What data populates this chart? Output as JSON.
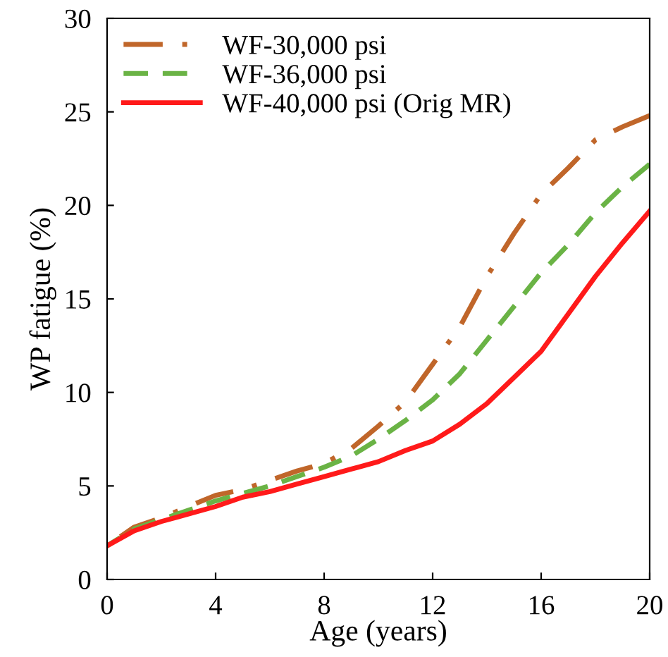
{
  "chart_data": {
    "type": "line",
    "xlabel": "Age (years)",
    "ylabel": "WP fatigue (%)",
    "x": [
      0,
      1,
      2,
      3,
      4,
      5,
      6,
      7,
      8,
      9,
      10,
      11,
      12,
      13,
      14,
      15,
      16,
      17,
      18,
      19,
      20
    ],
    "series": [
      {
        "name": "WF-30,000 psi",
        "color": "#c0662a",
        "line_style": "dashdot",
        "values": [
          1.8,
          2.8,
          3.3,
          3.9,
          4.5,
          4.8,
          5.3,
          5.8,
          6.2,
          7.0,
          8.2,
          9.5,
          11.5,
          13.5,
          16.2,
          18.5,
          20.6,
          22.0,
          23.5,
          24.2,
          24.8
        ]
      },
      {
        "name": "WF-36,000 psi",
        "color": "#6ab345",
        "line_style": "dashed",
        "values": [
          1.8,
          2.7,
          3.2,
          3.7,
          4.2,
          4.6,
          5.0,
          5.5,
          6.0,
          6.6,
          7.5,
          8.5,
          9.6,
          11.0,
          12.8,
          14.6,
          16.4,
          17.9,
          19.6,
          21.0,
          22.2
        ]
      },
      {
        "name": "WF-40,000 psi (Orig MR)",
        "color": "#ff1a1a",
        "line_style": "solid",
        "values": [
          1.8,
          2.6,
          3.1,
          3.5,
          3.9,
          4.4,
          4.7,
          5.1,
          5.5,
          5.9,
          6.3,
          6.9,
          7.4,
          8.3,
          9.4,
          10.8,
          12.2,
          14.2,
          16.2,
          18.0,
          19.7
        ]
      }
    ],
    "xlim": [
      0,
      20
    ],
    "xticks": [
      0,
      4,
      8,
      12,
      16,
      20
    ],
    "ylim": [
      0,
      30
    ],
    "yticks": [
      0,
      5,
      10,
      15,
      20,
      25,
      30
    ],
    "grid": false,
    "legend": "top left",
    "marker": "none"
  }
}
